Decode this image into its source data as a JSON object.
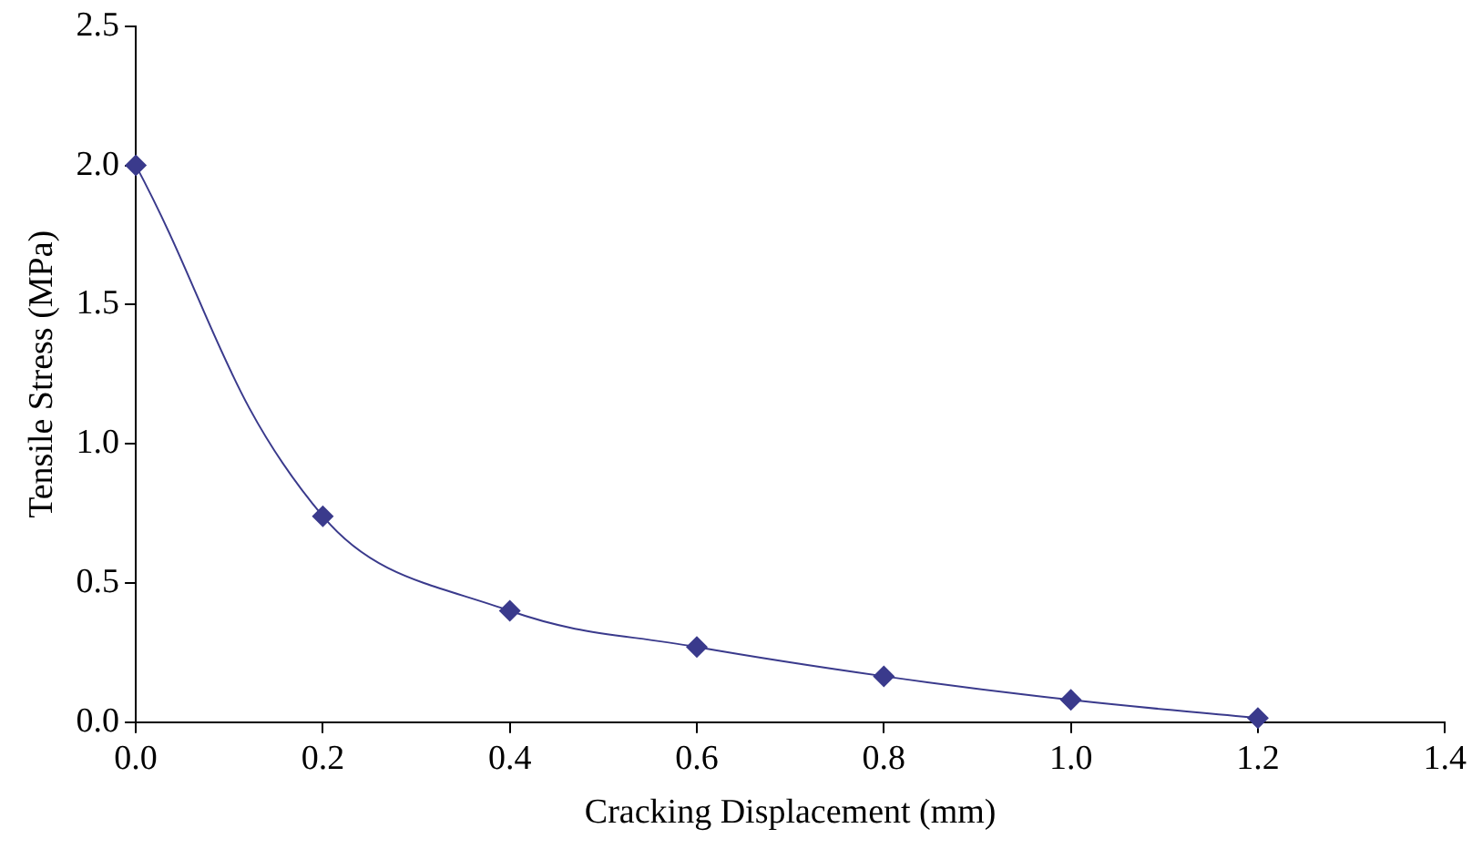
{
  "chart_data": {
    "type": "line",
    "xlabel": "Cracking Displacement (mm)",
    "ylabel": "Tensile Stress (MPa)",
    "x": [
      0,
      0.2,
      0.4,
      0.6,
      0.8,
      1.0,
      1.2
    ],
    "series": [
      {
        "color": "#3a3a8c",
        "values": [
          2.0,
          0.74,
          0.4,
          0.27,
          0.165,
          0.08,
          0.015
        ]
      }
    ],
    "xlim": [
      0,
      1.4
    ],
    "xticks": [
      {
        "value": 0,
        "label": "0.0"
      },
      {
        "value": 0.2,
        "label": "0.2"
      },
      {
        "value": 0.4,
        "label": "0.4"
      },
      {
        "value": 0.6,
        "label": "0.6"
      },
      {
        "value": 0.8,
        "label": "0.8"
      },
      {
        "value": 1,
        "label": "1.0"
      },
      {
        "value": 1.2,
        "label": "1.2"
      },
      {
        "value": 1.4,
        "label": "1.4"
      }
    ],
    "ylim": [
      0,
      2.5
    ],
    "yticks": [
      {
        "value": 0,
        "label": "0.0"
      },
      {
        "value": 0.5,
        "label": "0.5"
      },
      {
        "value": 1,
        "label": "1.0"
      },
      {
        "value": 1.5,
        "label": "1.5"
      },
      {
        "value": 2,
        "label": "2.0"
      },
      {
        "value": 2.5,
        "label": "2.5"
      }
    ],
    "grid": false,
    "legend": false,
    "marker": "diamond",
    "line_style": "solid"
  }
}
